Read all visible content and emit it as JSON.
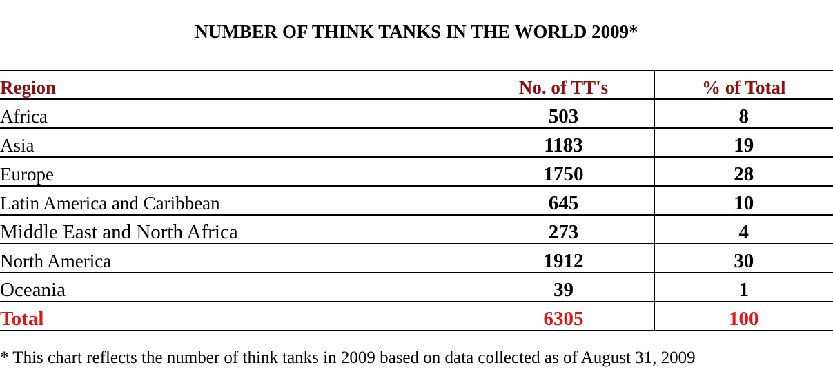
{
  "title": "NUMBER OF THINK TANKS IN THE WORLD 2009*",
  "table": {
    "headers": {
      "region": "Region",
      "count": "No. of TT's",
      "percent": "% of Total"
    },
    "rows": [
      {
        "region": "Africa",
        "count": "503",
        "percent": "8"
      },
      {
        "region": "Asia",
        "count": "1183",
        "percent": "19"
      },
      {
        "region": "Europe",
        "count": "1750",
        "percent": "28"
      },
      {
        "region": "Latin America and Caribbean",
        "count": "645",
        "percent": "10"
      },
      {
        "region": "Middle East and North Africa",
        "count": "273",
        "percent": "4"
      },
      {
        "region": "North America",
        "count": "1912",
        "percent": "30"
      },
      {
        "region": "Oceania",
        "count": "39",
        "percent": "1"
      }
    ],
    "total": {
      "region": "Total",
      "count": "6305",
      "percent": "100"
    }
  },
  "footnote": "* This chart reflects the number of think tanks in 2009 based on data collected as of August 31, 2009",
  "colors": {
    "header_text": "#8b1111",
    "total_text": "#e01515",
    "body_text": "#000000"
  }
}
